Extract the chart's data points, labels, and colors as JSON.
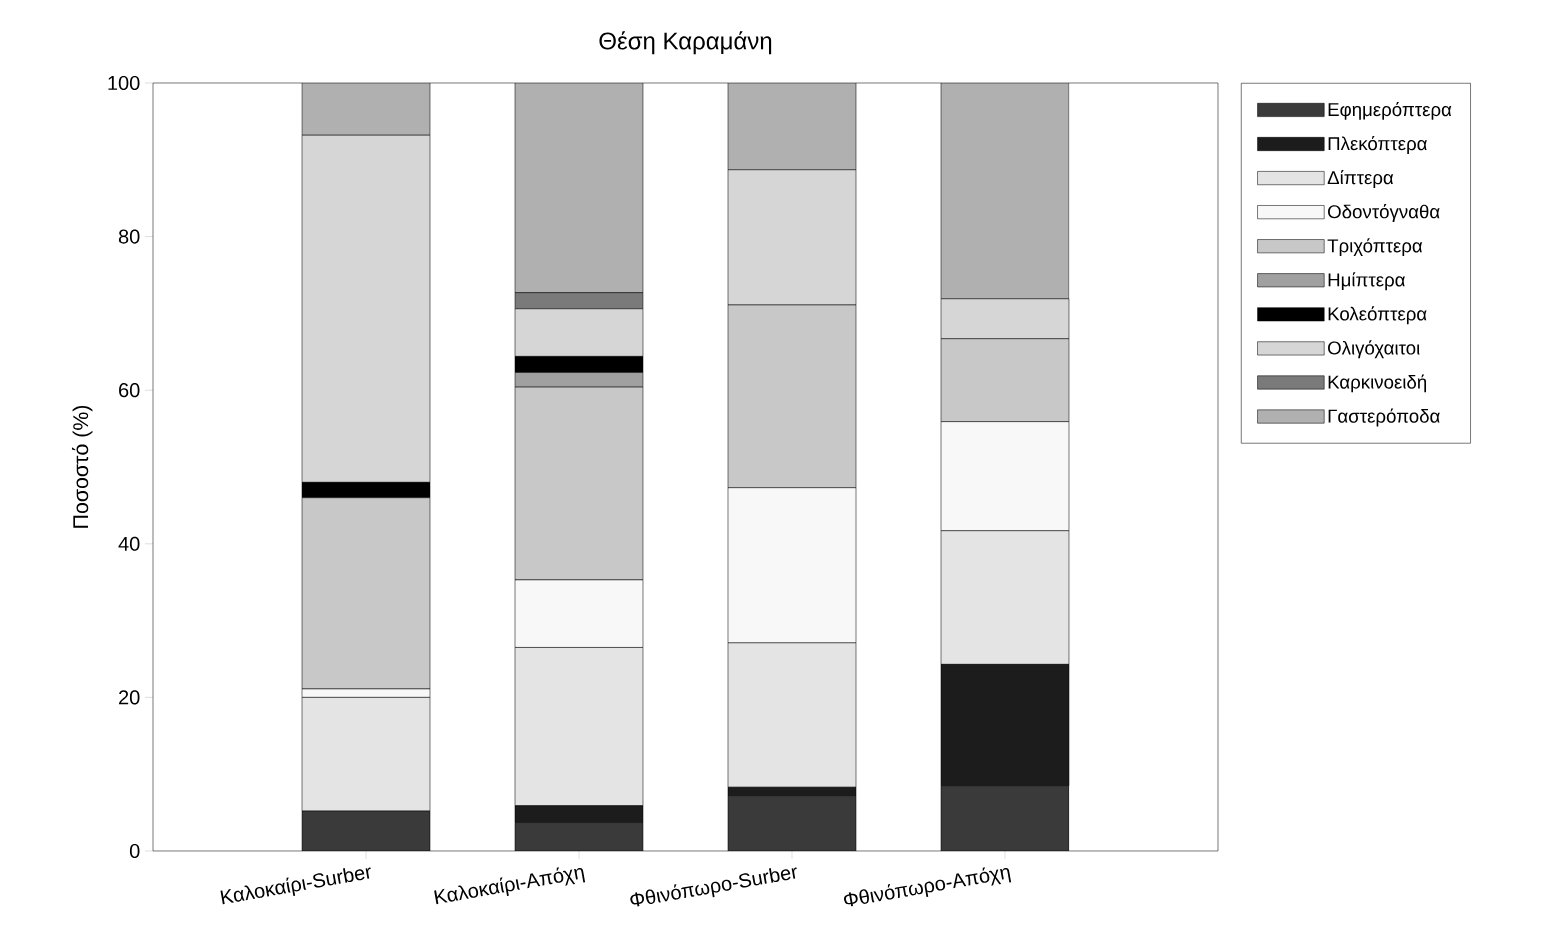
{
  "chart_data": {
    "type": "bar",
    "title": "Θέση Καραμάνη",
    "ylabel": "Ποσοστό (%)",
    "stacked": true,
    "legend": "right",
    "categories": [
      "Καλοκαίρι-Surber",
      "Καλοκαίρι-Απόχη",
      "Φθινόπωρο-Surber",
      "Φθινόπωρο-Απόχη"
    ],
    "ylim": [
      0,
      100
    ],
    "yticks": [
      0,
      20,
      40,
      60,
      80,
      100
    ],
    "series": [
      {
        "name": "Εφημερόπτερα",
        "color": "#3a3a3a",
        "values": [
          5.2,
          3.7,
          7.2,
          8.5
        ]
      },
      {
        "name": "Πλεκόπτερα",
        "color": "#1c1c1c",
        "values": [
          0,
          2.2,
          1.1,
          15.8
        ]
      },
      {
        "name": "Δίπτερα",
        "color": "#e4e4e4",
        "values": [
          14.8,
          20.6,
          18.8,
          17.4
        ]
      },
      {
        "name": "Οδοντόγναθα",
        "color": "#f8f8f8",
        "values": [
          1.1,
          8.8,
          20.2,
          14.2
        ]
      },
      {
        "name": "Τριχόπτερα",
        "color": "#c8c8c8",
        "values": [
          24.9,
          25.1,
          23.8,
          10.8
        ]
      },
      {
        "name": "Ημίπτερα",
        "color": "#a0a0a0",
        "values": [
          0,
          1.9,
          0,
          0
        ]
      },
      {
        "name": "Κολεόπτερα",
        "color": "#000000",
        "values": [
          2.0,
          2.1,
          0,
          0
        ]
      },
      {
        "name": "Ολιγόχαιτοι",
        "color": "#d6d6d6",
        "values": [
          45.2,
          6.2,
          17.6,
          5.2
        ]
      },
      {
        "name": "Καρκινοειδή",
        "color": "#7a7a7a",
        "values": [
          0,
          2.1,
          0,
          0
        ]
      },
      {
        "name": "Γαστερόποδα",
        "color": "#b0b0b0",
        "values": [
          6.8,
          27.3,
          11.3,
          28.1
        ]
      }
    ]
  }
}
